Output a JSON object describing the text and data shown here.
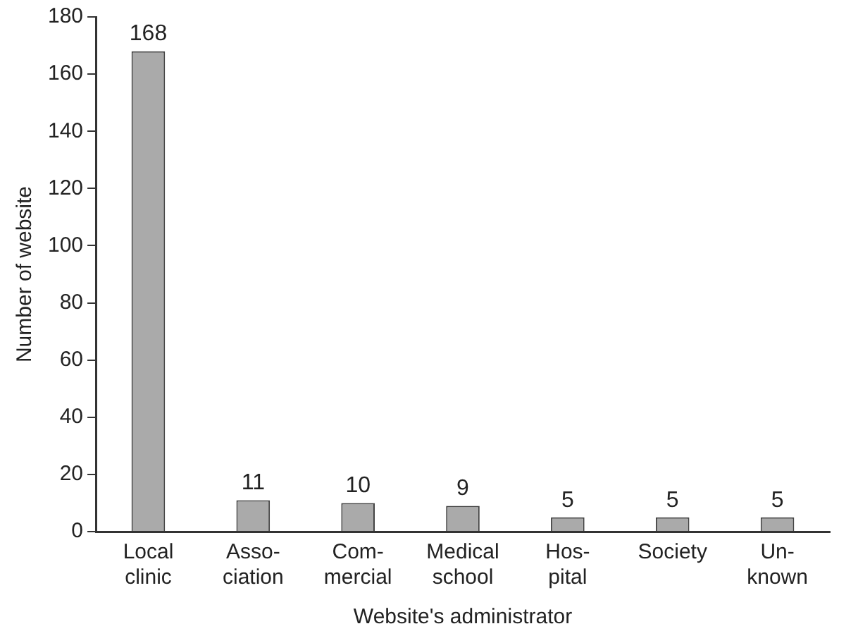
{
  "chart_data": {
    "type": "bar",
    "xlabel": "Website's administrator",
    "ylabel": "Number of website",
    "categories": [
      "Local\nclinic",
      "Asso-\nciation",
      "Com-\nmercial",
      "Medical\nschool",
      "Hos-\npital",
      "Society",
      "Un-\nknown"
    ],
    "values": [
      168,
      11,
      10,
      9,
      5,
      5,
      5
    ],
    "color": "#aaaaaa",
    "ylim": [
      0,
      180
    ],
    "yticks": [
      0,
      20,
      40,
      60,
      80,
      100,
      120,
      140,
      160,
      180
    ],
    "grid": false,
    "legend": false,
    "data_labels": true
  }
}
